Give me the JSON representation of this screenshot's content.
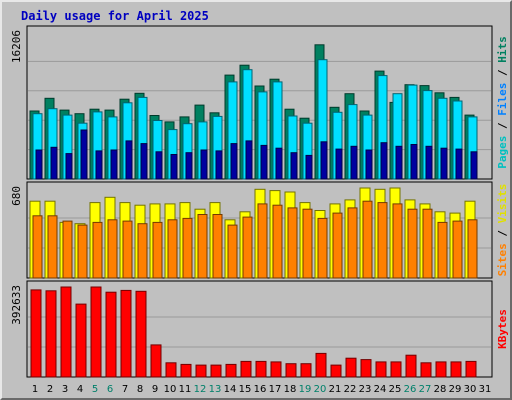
{
  "title": "Daily usage for April 2025",
  "chart_data": [
    {
      "type": "bar",
      "name": "hits-files-pages",
      "y_max_label": "16206",
      "ylim": [
        0,
        16206
      ],
      "x": [
        1,
        2,
        3,
        4,
        5,
        6,
        7,
        8,
        9,
        10,
        11,
        12,
        13,
        14,
        15,
        16,
        17,
        18,
        19,
        20,
        21,
        22,
        23,
        24,
        25,
        26,
        27,
        28,
        29,
        30,
        31
      ],
      "weekend_days": [
        5,
        6,
        12,
        13,
        19,
        20,
        26,
        27
      ],
      "axis_label_parts": [
        {
          "text": "Pages",
          "color": "#00c0c0"
        },
        {
          "text": " / ",
          "color": "#000000"
        },
        {
          "text": "Files",
          "color": "#0080ff"
        },
        {
          "text": " / ",
          "color": "#000000"
        },
        {
          "text": "Hits",
          "color": "#008060"
        }
      ],
      "series": [
        {
          "name": "Hits",
          "color": "#008060",
          "values": [
            7500,
            8900,
            7600,
            7200,
            7700,
            7600,
            8800,
            9450,
            7000,
            6300,
            6850,
            8150,
            7300,
            11450,
            12550,
            10250,
            11000,
            7700,
            6700,
            14800,
            7900,
            9400,
            7500,
            11900,
            8450,
            10400,
            10300,
            9500,
            9000,
            7050,
            null
          ]
        },
        {
          "name": "Files",
          "color": "#00e0ff",
          "values": [
            7200,
            7750,
            7050,
            6150,
            7400,
            6850,
            8400,
            9000,
            6450,
            5450,
            6100,
            6300,
            6900,
            10700,
            12050,
            9600,
            10700,
            6950,
            6150,
            13150,
            7350,
            8200,
            7050,
            11400,
            9400,
            10350,
            9750,
            8900,
            8600,
            6850,
            null
          ]
        },
        {
          "name": "Pages",
          "color": "#0000a0",
          "values": [
            3200,
            3500,
            2800,
            5400,
            3100,
            3200,
            4200,
            3900,
            3000,
            2700,
            2900,
            3200,
            3100,
            3900,
            4200,
            3700,
            3400,
            2900,
            2600,
            4100,
            3300,
            3600,
            3200,
            4000,
            3600,
            3800,
            3600,
            3400,
            3300,
            3000,
            null
          ]
        }
      ]
    },
    {
      "type": "bar",
      "name": "visits-sites",
      "y_max_label": "680",
      "ylim": [
        0,
        680
      ],
      "x": [
        1,
        2,
        3,
        4,
        5,
        6,
        7,
        8,
        9,
        10,
        11,
        12,
        13,
        14,
        15,
        16,
        17,
        18,
        19,
        20,
        21,
        22,
        23,
        24,
        25,
        26,
        27,
        28,
        29,
        30,
        31
      ],
      "axis_label_parts": [
        {
          "text": "Sites",
          "color": "#ff8000"
        },
        {
          "text": " / ",
          "color": "#000000"
        },
        {
          "text": "Visits",
          "color": "#e0e000"
        }
      ],
      "series": [
        {
          "name": "Visits",
          "color": "#ffff00",
          "values": [
            580,
            580,
            420,
            410,
            570,
            610,
            570,
            550,
            560,
            560,
            570,
            520,
            570,
            440,
            500,
            670,
            660,
            650,
            570,
            510,
            560,
            590,
            680,
            670,
            680,
            590,
            560,
            500,
            490,
            580,
            null
          ]
        },
        {
          "name": "Sites",
          "color": "#ff8000",
          "values": [
            470,
            470,
            430,
            400,
            420,
            440,
            430,
            410,
            420,
            440,
            450,
            480,
            480,
            400,
            460,
            560,
            550,
            530,
            520,
            450,
            490,
            530,
            580,
            570,
            560,
            520,
            520,
            420,
            430,
            440,
            null
          ]
        }
      ]
    },
    {
      "type": "bar",
      "name": "kbytes",
      "y_max_label": "392633",
      "ylim": [
        0,
        392633
      ],
      "x": [
        1,
        2,
        3,
        4,
        5,
        6,
        7,
        8,
        9,
        10,
        11,
        12,
        13,
        14,
        15,
        16,
        17,
        18,
        19,
        20,
        21,
        22,
        23,
        24,
        25,
        26,
        27,
        28,
        29,
        30,
        31
      ],
      "axis_label_parts": [
        {
          "text": "KBytes",
          "color": "#ff0000"
        }
      ],
      "series": [
        {
          "name": "KBytes",
          "color": "#ff0000",
          "values": [
            380000,
            376000,
            392633,
            318000,
            392633,
            370000,
            378000,
            374000,
            140000,
            62000,
            55000,
            52000,
            52000,
            55000,
            68000,
            68000,
            66000,
            58000,
            58000,
            103000,
            52000,
            82000,
            76000,
            66000,
            66000,
            95000,
            62000,
            66000,
            66000,
            68000,
            null
          ]
        }
      ]
    }
  ]
}
